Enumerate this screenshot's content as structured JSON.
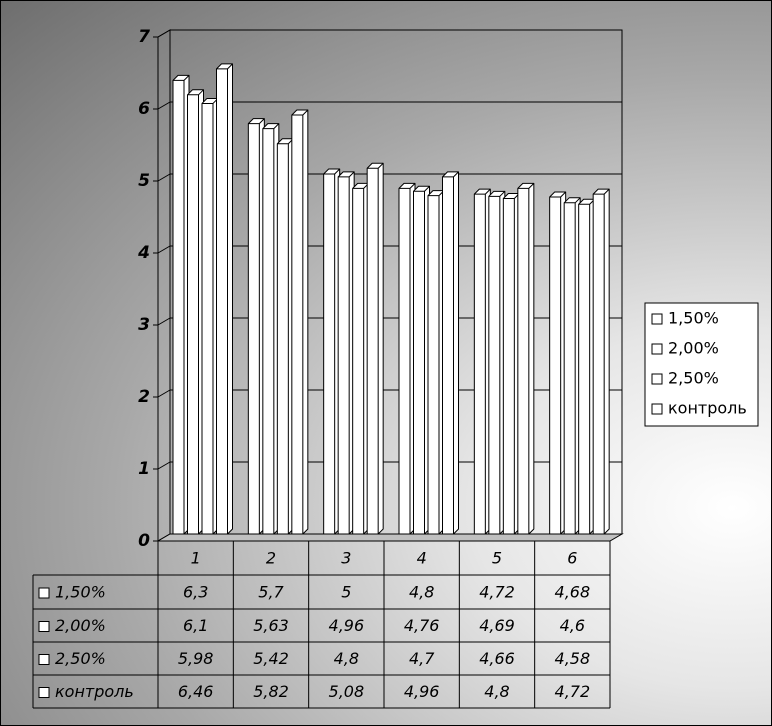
{
  "chart_data": {
    "type": "bar",
    "categories": [
      "1",
      "2",
      "3",
      "4",
      "5",
      "6"
    ],
    "series": [
      {
        "name": "1,50%",
        "color": "#ffffff",
        "values": [
          6.3,
          5.7,
          5,
          4.8,
          4.72,
          4.68
        ],
        "value_labels": [
          "6,3",
          "5,7",
          "5",
          "4,8",
          "4,72",
          "4,68"
        ]
      },
      {
        "name": "2,00%",
        "color": "#ffffff",
        "values": [
          6.1,
          5.63,
          4.96,
          4.76,
          4.69,
          4.6
        ],
        "value_labels": [
          "6,1",
          "5,63",
          "4,96",
          "4,76",
          "4,69",
          "4,6"
        ]
      },
      {
        "name": "2,50%",
        "color": "#ffffff",
        "values": [
          5.98,
          5.42,
          4.8,
          4.7,
          4.66,
          4.58
        ],
        "value_labels": [
          "5,98",
          "5,42",
          "4,8",
          "4,7",
          "4,66",
          "4,58"
        ]
      },
      {
        "name": "контроль",
        "color": "#ffffff",
        "values": [
          6.46,
          5.82,
          5.08,
          4.96,
          4.8,
          4.72
        ],
        "value_labels": [
          "6,46",
          "5,82",
          "5,08",
          "4,96",
          "4,8",
          "4,72"
        ]
      }
    ],
    "ylim": [
      0,
      7
    ],
    "yticks": [
      0,
      1,
      2,
      3,
      4,
      5,
      6,
      7
    ],
    "grid": true,
    "legend": "right",
    "data_table": true
  }
}
